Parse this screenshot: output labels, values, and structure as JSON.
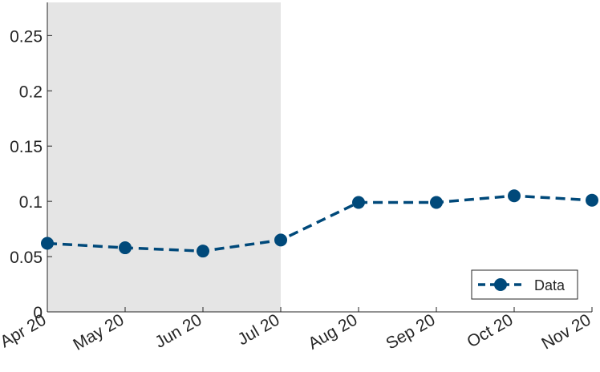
{
  "chart_data": {
    "type": "line",
    "x": [
      "Apr 20",
      "May 20",
      "Jun 20",
      "Jul 20",
      "Aug 20",
      "Sep 20",
      "Oct 20",
      "Nov 20"
    ],
    "series": [
      {
        "name": "Data",
        "values": [
          0.062,
          0.058,
          0.055,
          0.065,
          0.099,
          0.099,
          0.105,
          0.101
        ],
        "color": "#00497a",
        "line_style": "dashed",
        "marker": "circle"
      }
    ],
    "ylim": [
      0,
      0.28
    ],
    "yticks": [
      0,
      0.05,
      0.1,
      0.15,
      0.2,
      0.25
    ],
    "ytick_labels": [
      "0",
      "0.05",
      "0.1",
      "0.15",
      "0.2",
      "0.25"
    ],
    "shaded_region": {
      "from": "Apr 20",
      "to": "Jul 20",
      "color": "#e5e5e5"
    },
    "grid": false,
    "legend": {
      "position": "bottom-right",
      "entries": [
        "Data"
      ]
    },
    "title": "",
    "xlabel": "",
    "ylabel": ""
  }
}
